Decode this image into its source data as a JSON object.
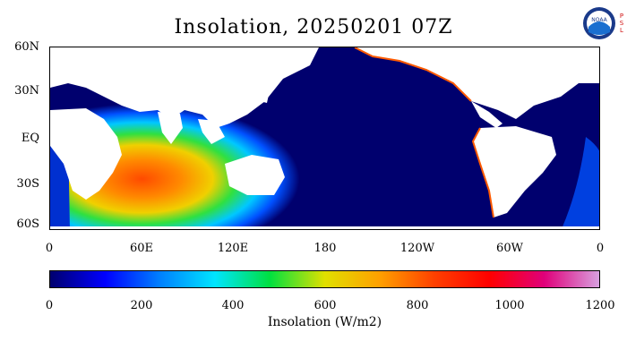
{
  "title": "Insolation, 20250201 07Z",
  "logo": {
    "text": "NOAA",
    "side_text": "PSL",
    "icon": "noaa-logo"
  },
  "map": {
    "projection": "equirectangular",
    "background_color": "#ffffff",
    "land_color": "#ffffff",
    "ocean_night_color": "#00006e",
    "lat_labels": [
      "60N",
      "30N",
      "EQ",
      "30S",
      "60S"
    ],
    "lon_labels": [
      "0",
      "60E",
      "120E",
      "180",
      "120W",
      "60W",
      "0"
    ]
  },
  "colorbar": {
    "labels": [
      "0",
      "200",
      "400",
      "600",
      "800",
      "1000",
      "1200"
    ],
    "title": "Insolation (W/m2)",
    "range": [
      0,
      1200
    ],
    "colors": [
      "#00006e",
      "#0000ff",
      "#0080ff",
      "#00e5ff",
      "#00e040",
      "#e0e000",
      "#ffa000",
      "#ff4000",
      "#ff0000",
      "#e0007a",
      "#d8a0e0"
    ]
  }
}
